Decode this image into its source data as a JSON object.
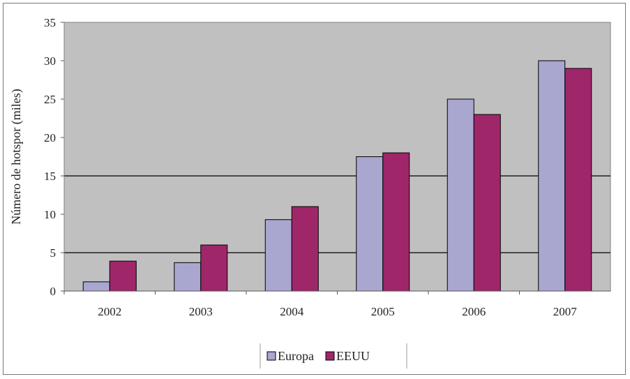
{
  "chart_data": {
    "type": "bar",
    "title": "",
    "xlabel": "",
    "ylabel": "Número de hotspor (miles)",
    "ylim": [
      0,
      35
    ],
    "yticks": [
      0,
      5,
      10,
      15,
      20,
      25,
      30,
      35
    ],
    "categories": [
      "2002",
      "2003",
      "2004",
      "2005",
      "2006",
      "2007"
    ],
    "series": [
      {
        "name": "Europa",
        "color": "#a9a6d0",
        "values": [
          1.2,
          3.7,
          9.3,
          17.5,
          25.0,
          30.0
        ]
      },
      {
        "name": "EEUU",
        "color": "#a0266a",
        "values": [
          3.9,
          6.0,
          11.0,
          18.0,
          23.0,
          29.0
        ]
      }
    ],
    "grid_lines_at": [
      5,
      15
    ],
    "plot_background": "#c0c0c0",
    "legend_position": "bottom"
  }
}
